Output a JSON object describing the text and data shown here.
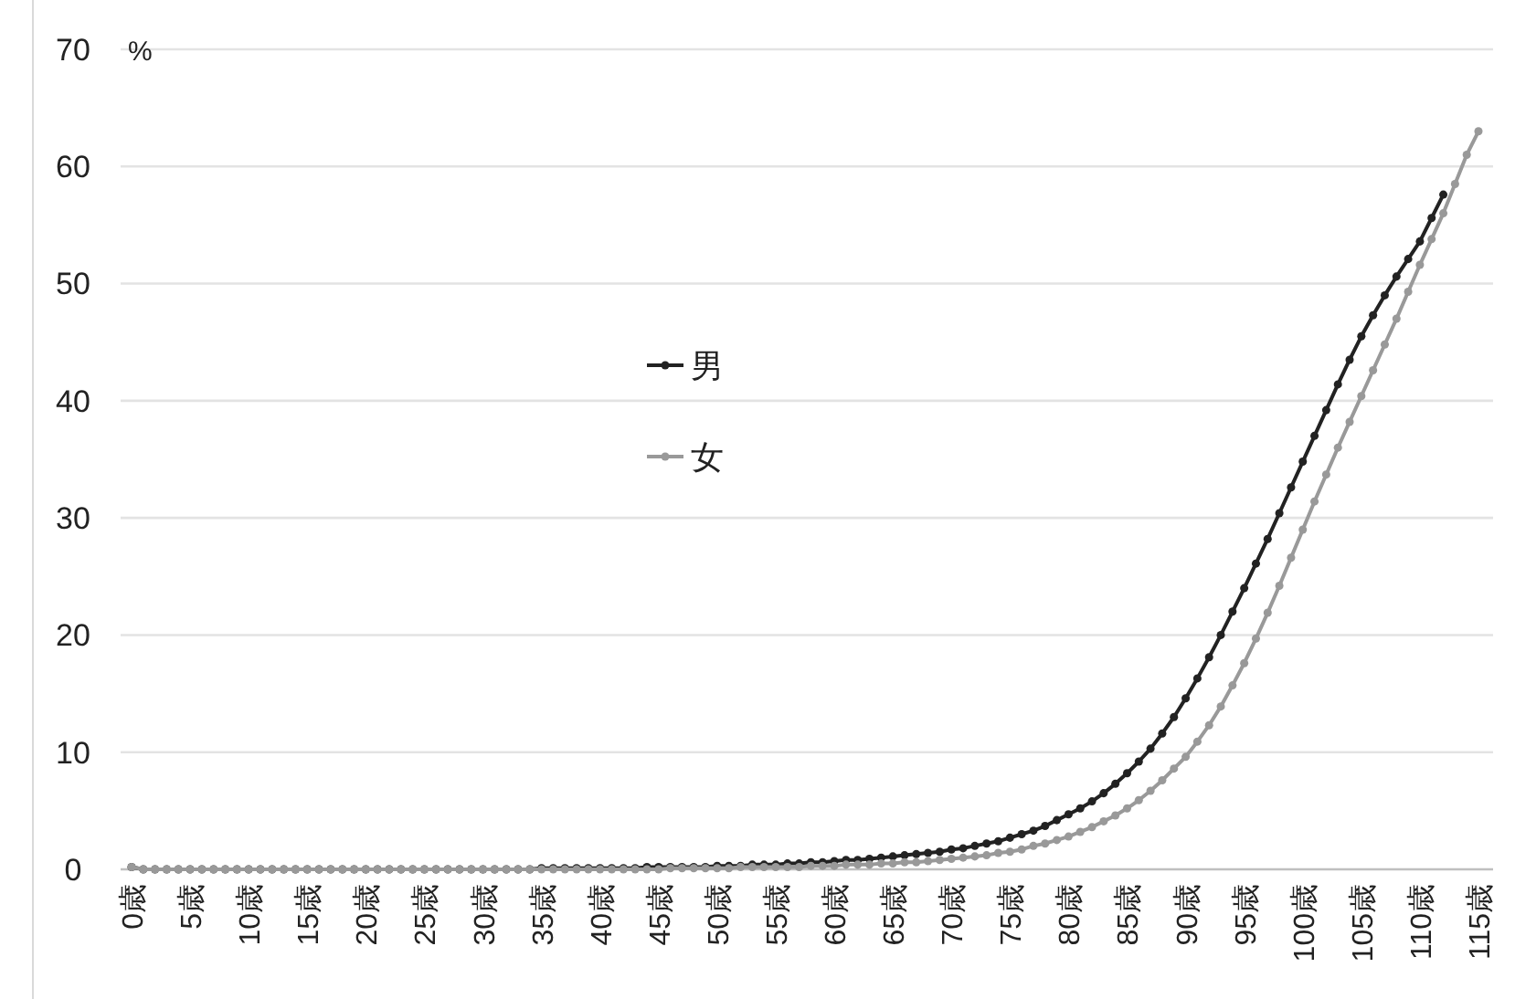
{
  "chart_data": {
    "type": "line",
    "ylabel": "%",
    "ylim": [
      0,
      70
    ],
    "yticks": [
      0,
      10,
      20,
      30,
      40,
      50,
      60,
      70
    ],
    "grid": "y",
    "legend": "center",
    "marker": "circle",
    "line_style": "solid",
    "categories": [
      "0歳",
      null,
      null,
      null,
      null,
      "5歳",
      null,
      null,
      null,
      null,
      "10歳",
      null,
      null,
      null,
      null,
      "15歳",
      null,
      null,
      null,
      null,
      "20歳",
      null,
      null,
      null,
      null,
      "25歳",
      null,
      null,
      null,
      null,
      "30歳",
      null,
      null,
      null,
      null,
      "35歳",
      null,
      null,
      null,
      null,
      "40歳",
      null,
      null,
      null,
      null,
      "45歳",
      null,
      null,
      null,
      null,
      "50歳",
      null,
      null,
      null,
      null,
      "55歳",
      null,
      null,
      null,
      null,
      "60歳",
      null,
      null,
      null,
      null,
      "65歳",
      null,
      null,
      null,
      null,
      "70歳",
      null,
      null,
      null,
      null,
      "75歳",
      null,
      null,
      null,
      null,
      "80歳",
      null,
      null,
      null,
      null,
      "85歳",
      null,
      null,
      null,
      null,
      "90歳",
      null,
      null,
      null,
      null,
      "95歳",
      null,
      null,
      null,
      null,
      "100歳",
      null,
      null,
      null,
      null,
      "105歳",
      null,
      null,
      null,
      null,
      "110歳",
      null,
      null,
      null,
      null,
      "115歳"
    ],
    "series": [
      {
        "name": "男",
        "color": "#222222",
        "values": [
          0.2,
          0,
          0,
          0,
          0,
          0,
          0,
          0,
          0,
          0,
          0,
          0,
          0,
          0,
          0,
          0,
          0,
          0,
          0,
          0,
          0,
          0,
          0,
          0,
          0,
          0,
          0,
          0,
          0,
          0,
          0,
          0,
          0,
          0,
          0,
          0.1,
          0.1,
          0.1,
          0.1,
          0.1,
          0.1,
          0.1,
          0.1,
          0.1,
          0.2,
          0.2,
          0.2,
          0.2,
          0.2,
          0.2,
          0.3,
          0.3,
          0.3,
          0.4,
          0.4,
          0.4,
          0.5,
          0.5,
          0.6,
          0.6,
          0.7,
          0.8,
          0.8,
          0.9,
          1.0,
          1.1,
          1.2,
          1.3,
          1.4,
          1.5,
          1.7,
          1.8,
          2.0,
          2.2,
          2.4,
          2.7,
          3.0,
          3.3,
          3.7,
          4.2,
          4.7,
          5.2,
          5.8,
          6.5,
          7.3,
          8.2,
          9.2,
          10.3,
          11.6,
          13.0,
          14.6,
          16.3,
          18.1,
          20.0,
          22.0,
          24.0,
          26.1,
          28.2,
          30.4,
          32.6,
          34.8,
          37.0,
          39.2,
          41.4,
          43.5,
          45.5,
          47.3,
          49.0,
          50.6,
          52.1,
          53.6,
          55.6,
          57.6,
          null,
          null,
          null
        ]
      },
      {
        "name": "女",
        "color": "#999999",
        "values": [
          0.2,
          0,
          0,
          0,
          0,
          0,
          0,
          0,
          0,
          0,
          0,
          0,
          0,
          0,
          0,
          0,
          0,
          0,
          0,
          0,
          0,
          0,
          0,
          0,
          0,
          0,
          0,
          0,
          0,
          0,
          0,
          0,
          0,
          0,
          0,
          0,
          0,
          0,
          0,
          0,
          0,
          0,
          0,
          0,
          0,
          0,
          0.1,
          0.1,
          0.1,
          0.1,
          0.1,
          0.1,
          0.2,
          0.2,
          0.2,
          0.2,
          0.2,
          0.2,
          0.3,
          0.3,
          0.3,
          0.4,
          0.4,
          0.4,
          0.5,
          0.5,
          0.6,
          0.6,
          0.7,
          0.8,
          0.9,
          1.0,
          1.1,
          1.2,
          1.4,
          1.5,
          1.7,
          2.0,
          2.2,
          2.5,
          2.8,
          3.2,
          3.6,
          4.1,
          4.6,
          5.2,
          5.9,
          6.7,
          7.6,
          8.6,
          9.6,
          10.9,
          12.3,
          13.9,
          15.7,
          17.6,
          19.7,
          21.9,
          24.2,
          26.6,
          29.0,
          31.4,
          33.7,
          36.0,
          38.2,
          40.4,
          42.6,
          44.8,
          47.0,
          49.3,
          51.6,
          53.8,
          56.0,
          58.5,
          61.0,
          63.0
        ]
      }
    ]
  }
}
